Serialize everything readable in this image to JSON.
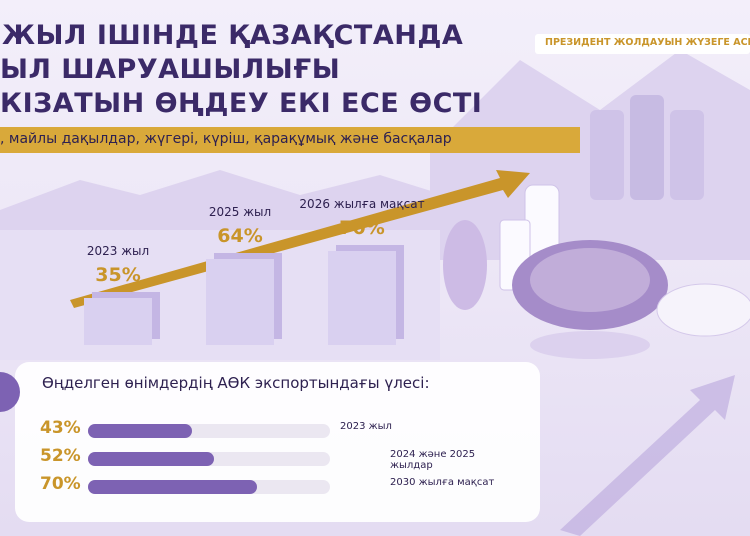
{
  "header": {
    "title_lines": [
      "ЖЫЛ ІШІНДЕ ҚАЗАҚСТАНДА",
      "ЫЛ ШАРУАШЫЛЫҒЫ",
      "КІЗАТЫН ӨҢДЕУ ЕКІ ЕСЕ ӨСТІ"
    ],
    "badge": "ПРЕЗИДЕНТ ЖОЛДАУЫН ЖҮЗЕГЕ АСЫ",
    "subtitle": ", майлы дақылдар, жүгері, күріш, қарақұмық және басқалар"
  },
  "chart_data": [
    {
      "type": "bar",
      "categories": [
        "2023 жыл",
        "2025 жыл",
        "2026 жылға мақсат"
      ],
      "values": [
        35,
        64,
        70
      ],
      "value_labels": [
        "35%",
        "64%",
        "70%"
      ],
      "color": "#d9d0f0"
    },
    {
      "type": "hbar",
      "title": "Өңделген өнімдердің АӨК экспортындағы үлесі:",
      "categories": [
        "2023 жыл",
        "2024 және 2025 жылдар",
        "2030 жылға мақсат"
      ],
      "values": [
        43,
        52,
        70
      ],
      "value_labels": [
        "43%",
        "52%",
        "70%"
      ],
      "color": "#7d62b3"
    }
  ]
}
